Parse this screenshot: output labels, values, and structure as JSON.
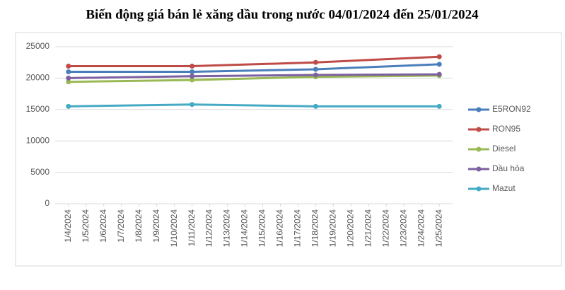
{
  "chart_data": {
    "type": "line",
    "title": "Biến động giá bán lẻ xăng dầu trong nước 04/01/2024 đến 25/01/2024",
    "x": [
      "1/4/2024",
      "1/11/2024",
      "1/18/2024",
      "1/25/2024"
    ],
    "xlim": [
      "1/4/2024",
      "1/25/2024"
    ],
    "xticks": [
      "1/4/2024",
      "1/5/2024",
      "1/6/2024",
      "1/7/2024",
      "1/8/2024",
      "1/9/2024",
      "1/10/2024",
      "1/11/2024",
      "1/12/2024",
      "1/13/2024",
      "1/14/2024",
      "1/15/2024",
      "1/16/2024",
      "1/17/2024",
      "1/18/2024",
      "1/19/2024",
      "1/20/2024",
      "1/21/2024",
      "1/22/2024",
      "1/23/2024",
      "1/24/2024",
      "1/25/2024"
    ],
    "series": [
      {
        "name": "E5RON92",
        "color": "#4a7ebb",
        "values": [
          21000,
          21000,
          21400,
          22200
        ]
      },
      {
        "name": "RON95",
        "color": "#be4b48",
        "values": [
          21900,
          21900,
          22500,
          23400
        ]
      },
      {
        "name": "Diesel",
        "color": "#98b954",
        "values": [
          19400,
          19700,
          20200,
          20400
        ]
      },
      {
        "name": "Dầu hỏa",
        "color": "#7d60a0",
        "values": [
          20000,
          20300,
          20500,
          20600
        ]
      },
      {
        "name": "Mazut",
        "color": "#46aac5",
        "values": [
          15500,
          15800,
          15500,
          15500
        ]
      }
    ],
    "ylim": [
      0,
      25000
    ],
    "yticks": [
      0,
      5000,
      10000,
      15000,
      20000,
      25000
    ],
    "grid": true,
    "legend": "right"
  }
}
